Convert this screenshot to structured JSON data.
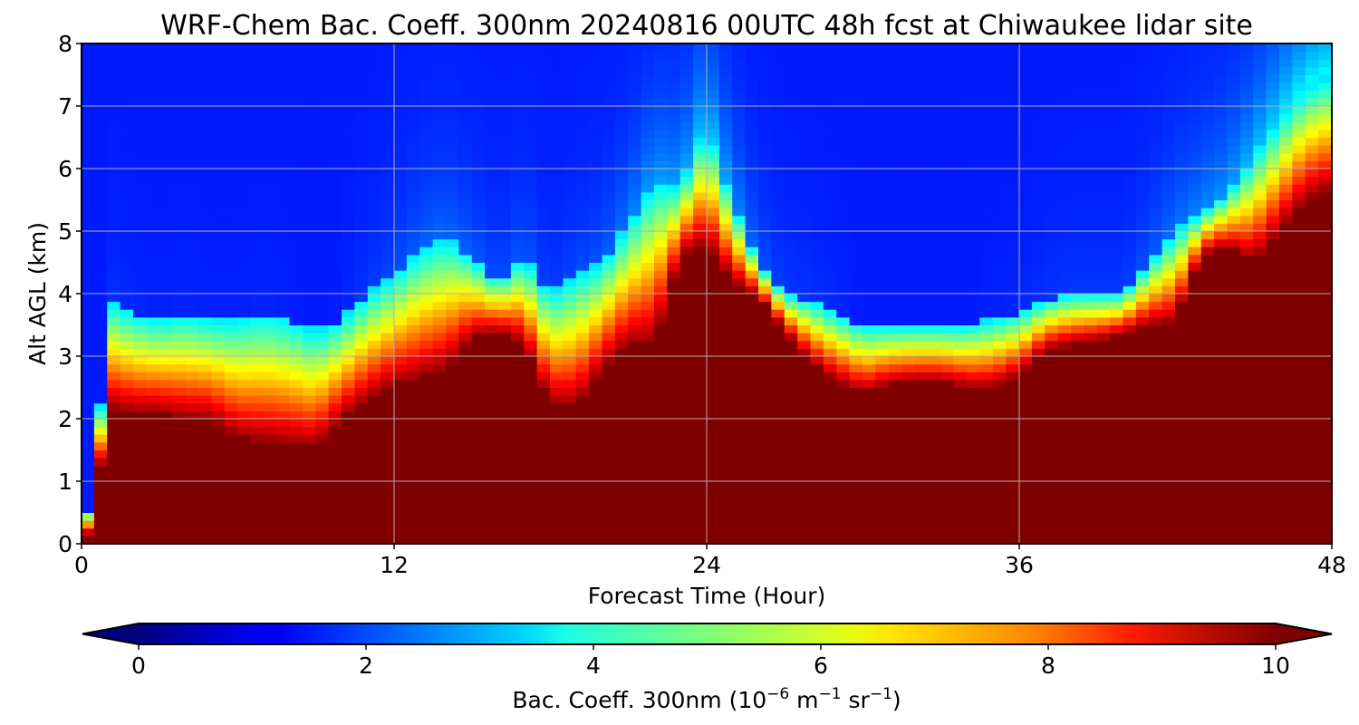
{
  "chart_data": {
    "type": "heatmap",
    "title": "WRF-Chem Bac. Coeff. 300nm  20240816 00UTC 48h fcst at Chiwaukee lidar site",
    "xlabel": "Forecast Time (Hour)",
    "ylabel": "Alt AGL (km)",
    "xlim": [
      0,
      48
    ],
    "ylim": [
      0,
      8
    ],
    "xticks": [
      "0",
      "12",
      "24",
      "36",
      "48"
    ],
    "yticks": [
      "0",
      "1",
      "2",
      "3",
      "4",
      "5",
      "6",
      "7",
      "8"
    ],
    "grid": true,
    "colorbar": {
      "label_main": "Bac. Coeff. 300nm  (10",
      "label_exp1": "−6",
      "label_mid": " m",
      "label_exp2": "−1",
      "label_mid2": " sr",
      "label_exp3": "−1",
      "label_end": ")",
      "min": 0,
      "max": 10,
      "ticks": [
        "0",
        "2",
        "4",
        "6",
        "8",
        "10"
      ],
      "extend": "both",
      "colormap": "jet"
    },
    "x_hours": [
      0,
      0.5,
      1,
      2,
      3,
      4,
      5,
      6,
      7,
      8,
      9,
      10,
      11,
      12,
      13,
      14,
      15,
      16,
      17,
      18,
      19,
      20,
      21,
      22,
      23,
      24,
      25,
      26,
      27,
      28,
      29,
      30,
      31,
      32,
      33,
      34,
      35,
      36,
      37,
      38,
      39,
      40,
      41,
      42,
      43,
      44,
      45,
      46,
      47,
      48
    ],
    "saturation_top_km": [
      0,
      0.3,
      2.2,
      2.1,
      2.1,
      2.0,
      2.0,
      1.7,
      1.65,
      1.6,
      1.55,
      2.0,
      2.3,
      2.55,
      2.65,
      2.8,
      3.3,
      3.4,
      3.2,
      2.25,
      2.2,
      2.8,
      3.2,
      3.2,
      4.6,
      4.8,
      4.2,
      3.95,
      3.4,
      2.9,
      2.6,
      2.4,
      2.55,
      2.6,
      2.6,
      2.5,
      2.5,
      2.7,
      3.1,
      3.2,
      3.25,
      3.35,
      3.5,
      3.55,
      4.6,
      4.75,
      4.5,
      5.0,
      5.5,
      5.7
    ],
    "aerosol_top_km": [
      0,
      0.5,
      3.9,
      3.7,
      3.6,
      3.7,
      3.6,
      3.6,
      3.7,
      3.6,
      3.4,
      3.6,
      4.0,
      4.3,
      4.7,
      4.9,
      4.6,
      4.2,
      4.6,
      4.0,
      4.3,
      4.5,
      5.1,
      5.8,
      5.7,
      6.7,
      5.5,
      4.5,
      4.0,
      3.9,
      3.7,
      3.5,
      3.5,
      3.5,
      3.5,
      3.5,
      3.6,
      3.7,
      3.9,
      4.0,
      4.0,
      4.0,
      4.5,
      5.0,
      5.3,
      5.6,
      6.2,
      6.8,
      7.3,
      7.5
    ],
    "surface_mean_value": 10,
    "free_troposphere_value": 1.5
  }
}
